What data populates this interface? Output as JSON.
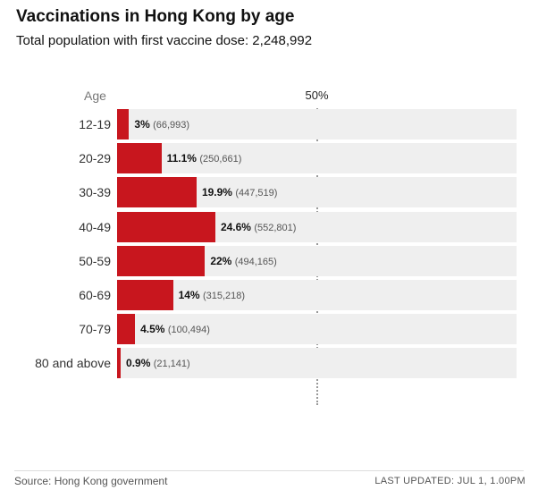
{
  "title": "Vaccinations in Hong Kong by age",
  "subtitle": "Total population with first vaccine dose: 2,248,992",
  "colors": {
    "bar": "#c8161e",
    "track": "#efefef"
  },
  "chart_data": {
    "type": "bar",
    "orientation": "horizontal",
    "axis_label": "Age",
    "reference_line": {
      "value": 50,
      "label": "50%"
    },
    "xlim": [
      0,
      100
    ],
    "categories": [
      "12-19",
      "20-29",
      "30-39",
      "40-49",
      "50-59",
      "60-69",
      "70-79",
      "80 and above"
    ],
    "values": [
      3,
      11.1,
      19.9,
      24.6,
      22,
      14,
      4.5,
      0.9
    ],
    "value_labels": [
      "3%",
      "11.1%",
      "19.9%",
      "24.6%",
      "22%",
      "14%",
      "4.5%",
      "0.9%"
    ],
    "counts": [
      "(66,993)",
      "(250,661)",
      "(447,519)",
      "(552,801)",
      "(494,165)",
      "(315,218)",
      "(100,494)",
      "(21,141)"
    ],
    "grid": false
  },
  "footer": {
    "source": "Source: Hong Kong government",
    "updated": "LAST UPDATED: JUL 1, 1.00PM"
  }
}
